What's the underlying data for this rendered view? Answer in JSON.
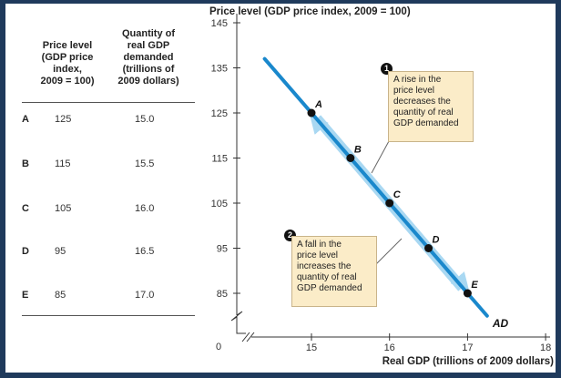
{
  "table": {
    "header_price": [
      "Price level",
      "(GDP price",
      "index,",
      "2009 = 100)"
    ],
    "header_qty": [
      "Quantity of",
      "real GDP",
      "demanded",
      "(trillions of",
      "2009 dollars)"
    ],
    "rows": [
      {
        "label": "A",
        "price": "125",
        "qty": "15.0"
      },
      {
        "label": "B",
        "price": "115",
        "qty": "15.5"
      },
      {
        "label": "C",
        "price": "105",
        "qty": "16.0"
      },
      {
        "label": "D",
        "price": "95",
        "qty": "16.5"
      },
      {
        "label": "E",
        "price": "85",
        "qty": "17.0"
      }
    ]
  },
  "callouts": {
    "rise": {
      "num": "1",
      "lines": [
        "A rise in the",
        "price level",
        "decreases the",
        "quantity of real",
        "GDP demanded"
      ]
    },
    "fall": {
      "num": "2",
      "lines": [
        "A fall in the",
        "price level",
        "increases the",
        "quantity of real",
        "GDP demanded"
      ]
    }
  },
  "chart_data": {
    "type": "line",
    "ylabel": "Price level (GDP price index, 2009 = 100)",
    "xlabel": "Real GDP (trillions of 2009 dollars)",
    "y_ticks": [
      85,
      95,
      105,
      115,
      125,
      135,
      145
    ],
    "x_ticks": [
      15,
      16,
      17,
      18
    ],
    "origin_label": "0",
    "ylim": [
      85,
      145
    ],
    "xlim": [
      15,
      18
    ],
    "axis_break": true,
    "series": [
      {
        "name": "AD",
        "line": [
          {
            "x": 14.4,
            "y": 137
          },
          {
            "x": 17.25,
            "y": 80
          }
        ],
        "points": [
          {
            "label": "A",
            "x": 15.0,
            "y": 125
          },
          {
            "label": "B",
            "x": 15.5,
            "y": 115
          },
          {
            "label": "C",
            "x": 16.0,
            "y": 105
          },
          {
            "label": "D",
            "x": 16.5,
            "y": 95
          },
          {
            "label": "E",
            "x": 17.0,
            "y": 85
          }
        ]
      }
    ],
    "colors": {
      "curve": "#1a88cc",
      "arrow": "#a9d8f2",
      "point": "#111111"
    }
  }
}
